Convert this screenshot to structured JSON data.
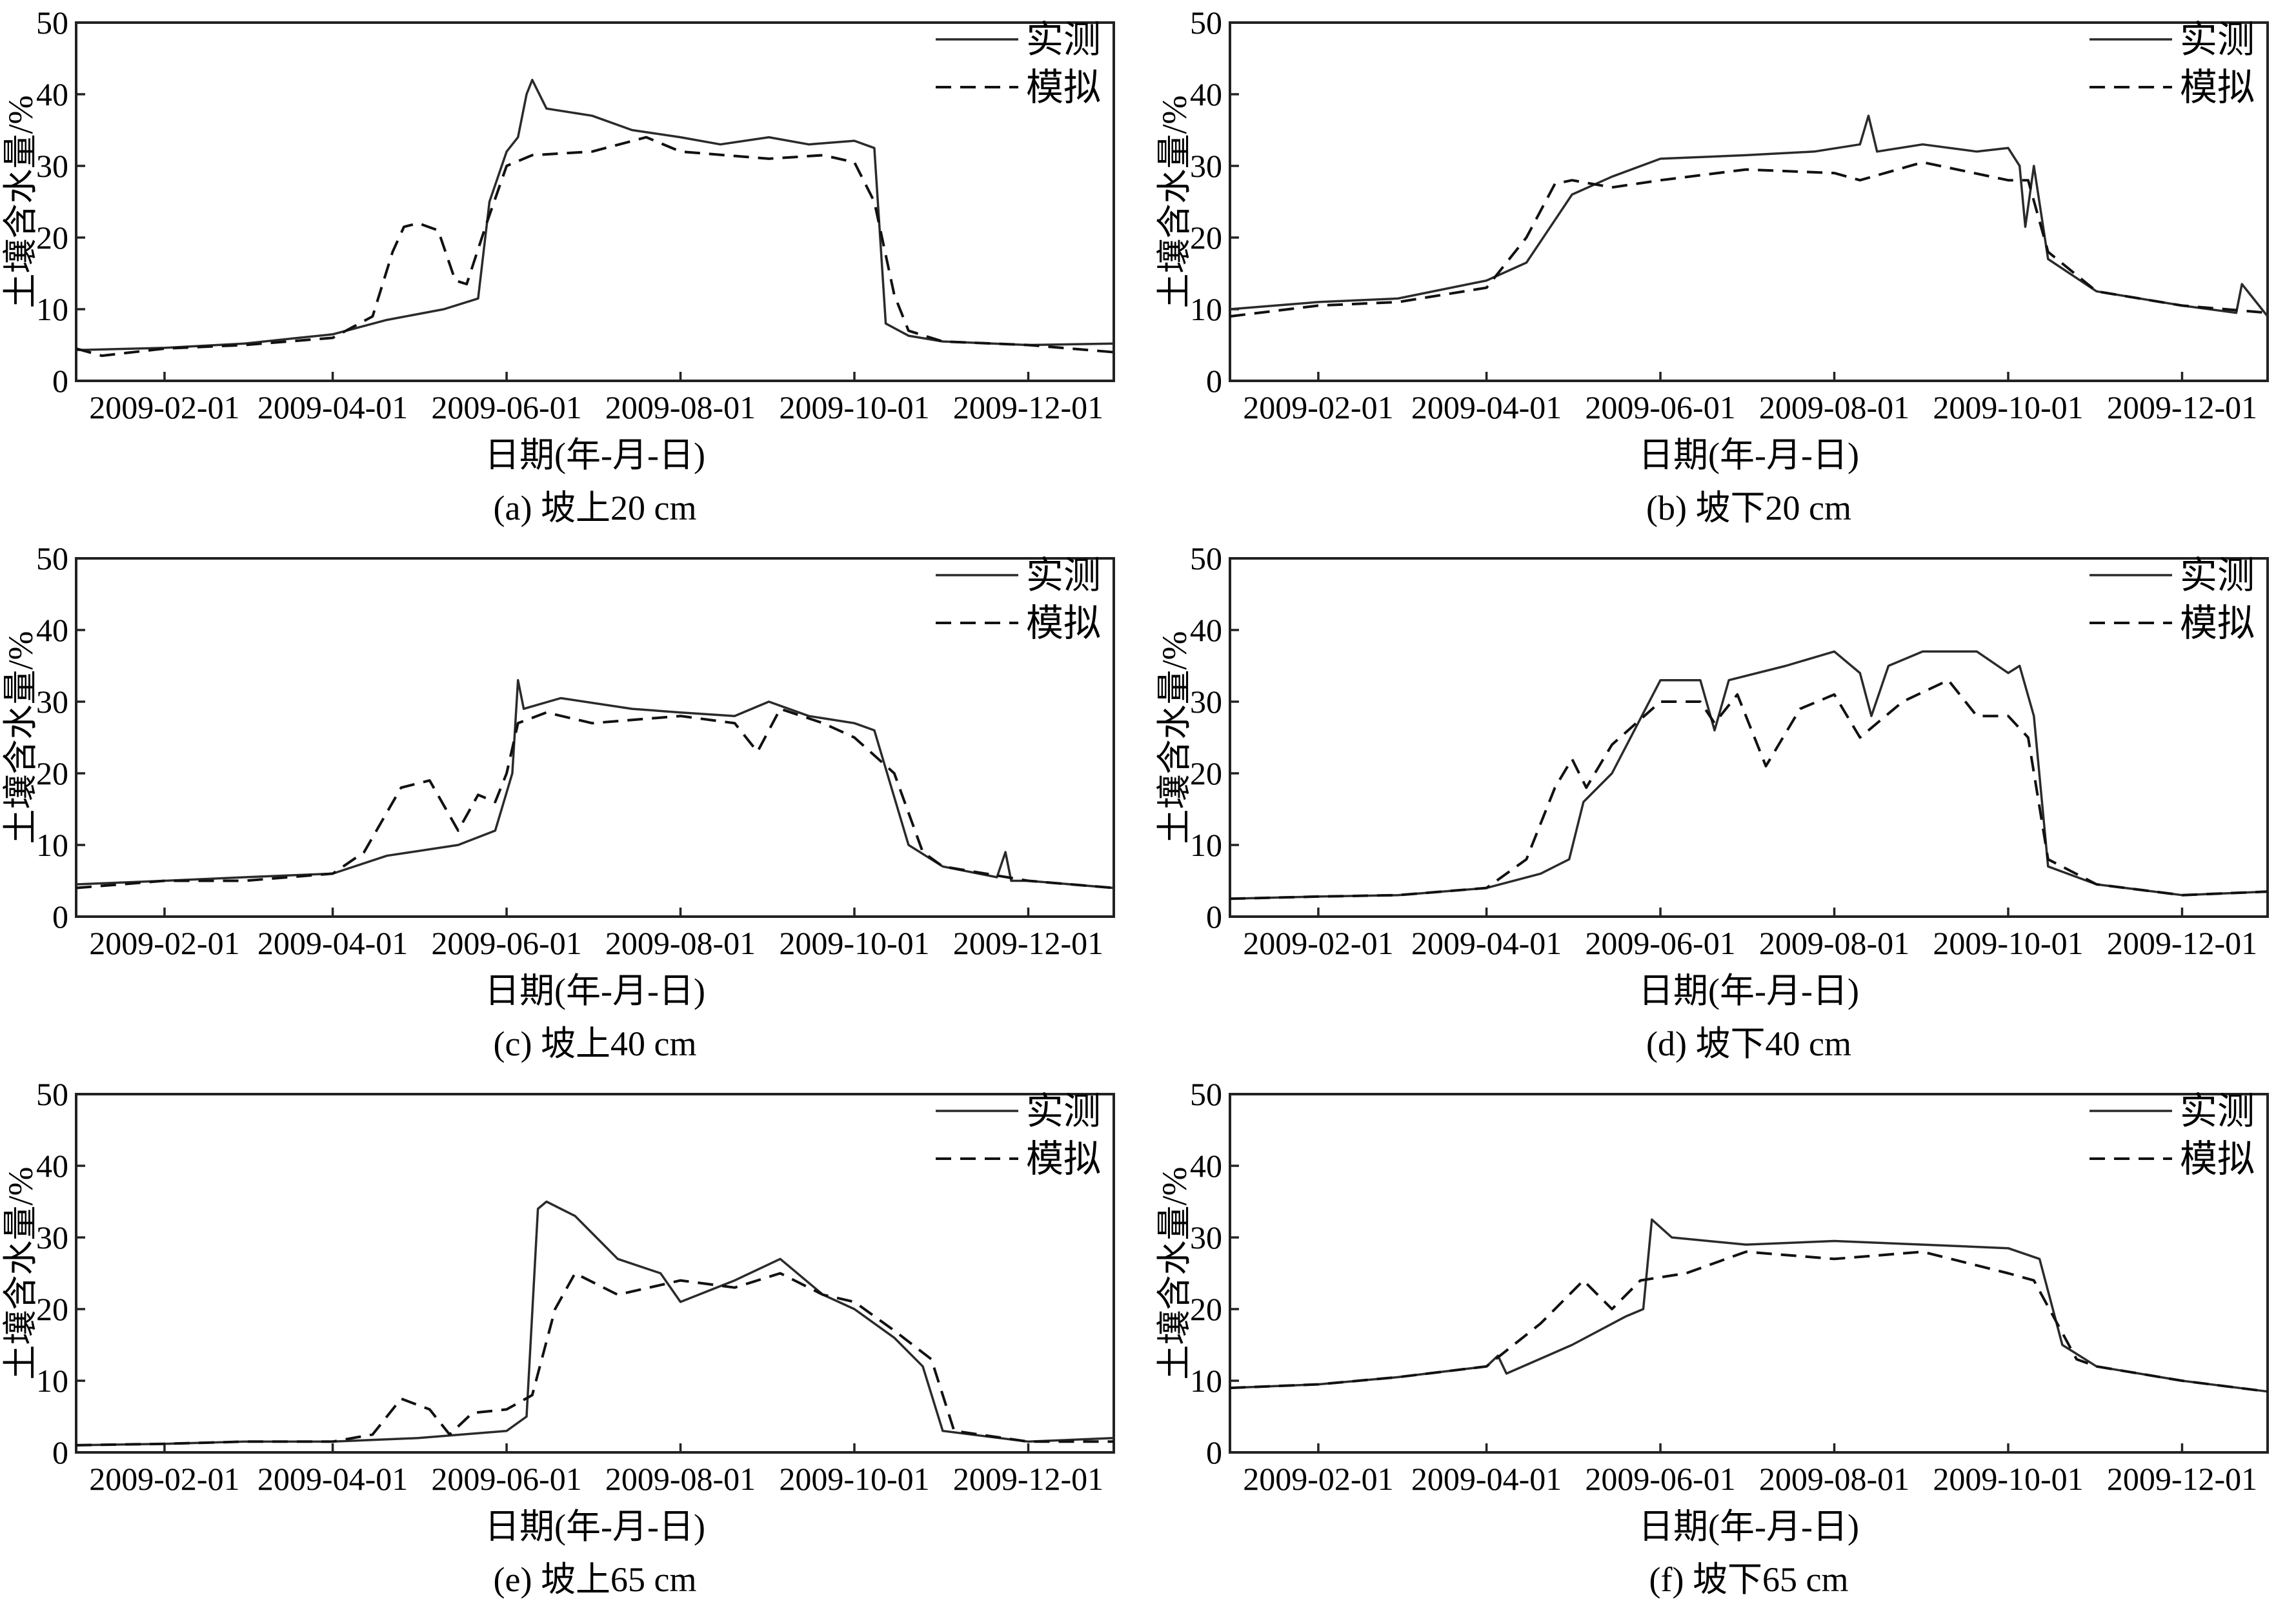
{
  "chart_data": [
    {
      "type": "line",
      "caption": "(a) 坡上20 cm",
      "xlabel": "日期(年-月-日)",
      "ylabel": "土壤含水量/%",
      "ylim": [
        0,
        50
      ],
      "yticks": [
        0,
        10,
        20,
        30,
        40,
        50
      ],
      "xlim": [
        "2009-01-01",
        "2009-12-31"
      ],
      "xticks": [
        "2009-02-01",
        "2009-04-01",
        "2009-06-01",
        "2009-08-01",
        "2009-10-01",
        "2009-12-01"
      ],
      "legend_position": "top-right",
      "series": [
        {
          "name": "实测",
          "style": "solid",
          "x": [
            "2009-01-01",
            "2009-02-01",
            "2009-03-01",
            "2009-03-20",
            "2009-04-01",
            "2009-04-20",
            "2009-05-10",
            "2009-05-22",
            "2009-05-26",
            "2009-06-01",
            "2009-06-05",
            "2009-06-08",
            "2009-06-10",
            "2009-06-15",
            "2009-07-01",
            "2009-07-15",
            "2009-08-01",
            "2009-08-15",
            "2009-09-01",
            "2009-09-15",
            "2009-10-01",
            "2009-10-08",
            "2009-10-12",
            "2009-10-20",
            "2009-11-01",
            "2009-12-01",
            "2009-12-31"
          ],
          "y": [
            4.3,
            4.6,
            5.2,
            6.0,
            6.5,
            8.5,
            10.0,
            11.5,
            25.0,
            32.0,
            34.0,
            40.0,
            42.0,
            38.0,
            37.0,
            35.0,
            34.0,
            33.0,
            34.0,
            33.0,
            33.5,
            32.5,
            8.0,
            6.3,
            5.5,
            5.0,
            5.2
          ]
        },
        {
          "name": "模拟",
          "style": "dashed",
          "x": [
            "2009-01-01",
            "2009-01-10",
            "2009-02-01",
            "2009-03-01",
            "2009-04-01",
            "2009-04-15",
            "2009-04-22",
            "2009-04-26",
            "2009-05-01",
            "2009-05-08",
            "2009-05-14",
            "2009-05-18",
            "2009-05-25",
            "2009-06-01",
            "2009-06-10",
            "2009-07-01",
            "2009-07-20",
            "2009-08-01",
            "2009-09-01",
            "2009-09-20",
            "2009-10-01",
            "2009-10-08",
            "2009-10-15",
            "2009-10-20",
            "2009-11-01",
            "2009-12-01",
            "2009-12-31"
          ],
          "y": [
            4.5,
            3.5,
            4.5,
            5.0,
            6.0,
            9.0,
            18.0,
            21.5,
            22.0,
            21.0,
            14.0,
            13.5,
            22.0,
            30.0,
            31.5,
            32.0,
            34.0,
            32.0,
            31.0,
            31.5,
            30.5,
            25.0,
            12.0,
            7.0,
            5.5,
            5.0,
            4.0
          ]
        }
      ]
    },
    {
      "type": "line",
      "caption": "(b) 坡下20 cm",
      "xlabel": "日期(年-月-日)",
      "ylabel": "土壤含水量/%",
      "ylim": [
        0,
        50
      ],
      "yticks": [
        0,
        10,
        20,
        30,
        40,
        50
      ],
      "xlim": [
        "2009-01-01",
        "2009-12-31"
      ],
      "xticks": [
        "2009-02-01",
        "2009-04-01",
        "2009-06-01",
        "2009-08-01",
        "2009-10-01",
        "2009-12-01"
      ],
      "legend_position": "top-right",
      "series": [
        {
          "name": "实测",
          "style": "solid",
          "x": [
            "2009-01-01",
            "2009-02-01",
            "2009-03-01",
            "2009-04-01",
            "2009-04-15",
            "2009-05-01",
            "2009-05-15",
            "2009-06-01",
            "2009-07-01",
            "2009-07-25",
            "2009-08-10",
            "2009-08-13",
            "2009-08-16",
            "2009-09-01",
            "2009-09-20",
            "2009-10-01",
            "2009-10-05",
            "2009-10-07",
            "2009-10-10",
            "2009-10-15",
            "2009-11-01",
            "2009-12-01",
            "2009-12-20",
            "2009-12-22",
            "2009-12-31"
          ],
          "y": [
            10.0,
            11.0,
            11.5,
            14.0,
            16.5,
            26.0,
            28.5,
            31.0,
            31.5,
            32.0,
            33.0,
            37.0,
            32.0,
            33.0,
            32.0,
            32.5,
            30.0,
            21.5,
            30.0,
            17.0,
            12.5,
            10.5,
            9.5,
            13.5,
            9.0
          ]
        },
        {
          "name": "模拟",
          "style": "dashed",
          "x": [
            "2009-01-01",
            "2009-02-01",
            "2009-03-01",
            "2009-04-01",
            "2009-04-15",
            "2009-04-25",
            "2009-05-01",
            "2009-05-15",
            "2009-06-01",
            "2009-07-01",
            "2009-08-01",
            "2009-08-10",
            "2009-09-01",
            "2009-10-01",
            "2009-10-08",
            "2009-10-15",
            "2009-11-01",
            "2009-12-01",
            "2009-12-31"
          ],
          "y": [
            9.0,
            10.5,
            11.0,
            13.0,
            20.0,
            27.5,
            28.0,
            27.0,
            28.0,
            29.5,
            29.0,
            28.0,
            30.5,
            28.0,
            28.0,
            18.0,
            12.5,
            10.5,
            9.5
          ]
        }
      ]
    },
    {
      "type": "line",
      "caption": "(c) 坡上40 cm",
      "xlabel": "日期(年-月-日)",
      "ylabel": "土壤含水量/%",
      "ylim": [
        0,
        50
      ],
      "yticks": [
        0,
        10,
        20,
        30,
        40,
        50
      ],
      "xlim": [
        "2009-01-01",
        "2009-12-31"
      ],
      "xticks": [
        "2009-02-01",
        "2009-04-01",
        "2009-06-01",
        "2009-08-01",
        "2009-10-01",
        "2009-12-01"
      ],
      "legend_position": "top-right",
      "series": [
        {
          "name": "实测",
          "style": "solid",
          "x": [
            "2009-01-01",
            "2009-02-01",
            "2009-03-01",
            "2009-04-01",
            "2009-04-20",
            "2009-05-15",
            "2009-05-28",
            "2009-06-03",
            "2009-06-05",
            "2009-06-07",
            "2009-06-20",
            "2009-07-15",
            "2009-08-01",
            "2009-08-20",
            "2009-09-01",
            "2009-09-15",
            "2009-10-01",
            "2009-10-08",
            "2009-10-20",
            "2009-11-01",
            "2009-11-20",
            "2009-11-23",
            "2009-11-25",
            "2009-12-01",
            "2009-12-31"
          ],
          "y": [
            4.5,
            5.0,
            5.5,
            6.0,
            8.5,
            10.0,
            12.0,
            20.0,
            33.0,
            29.0,
            30.5,
            29.0,
            28.5,
            28.0,
            30.0,
            28.0,
            27.0,
            26.0,
            10.0,
            7.0,
            5.5,
            9.0,
            5.0,
            5.0,
            4.0
          ]
        },
        {
          "name": "模拟",
          "style": "dashed",
          "x": [
            "2009-01-01",
            "2009-02-01",
            "2009-03-01",
            "2009-04-01",
            "2009-04-12",
            "2009-04-25",
            "2009-05-05",
            "2009-05-15",
            "2009-05-22",
            "2009-05-28",
            "2009-06-01",
            "2009-06-05",
            "2009-06-15",
            "2009-07-01",
            "2009-08-01",
            "2009-08-20",
            "2009-08-28",
            "2009-09-05",
            "2009-09-20",
            "2009-10-01",
            "2009-10-15",
            "2009-10-25",
            "2009-11-01",
            "2009-12-01",
            "2009-12-31"
          ],
          "y": [
            4.0,
            5.0,
            5.0,
            6.0,
            9.0,
            18.0,
            19.0,
            12.0,
            17.0,
            16.0,
            20.0,
            27.0,
            28.5,
            27.0,
            28.0,
            27.0,
            23.0,
            29.0,
            27.0,
            25.0,
            20.0,
            9.0,
            7.0,
            5.0,
            4.0
          ]
        }
      ]
    },
    {
      "type": "line",
      "caption": "(d) 坡下40 cm",
      "xlabel": "日期(年-月-日)",
      "ylabel": "土壤含水量/%",
      "ylim": [
        0,
        50
      ],
      "yticks": [
        0,
        10,
        20,
        30,
        40,
        50
      ],
      "xlim": [
        "2009-01-01",
        "2009-12-31"
      ],
      "xticks": [
        "2009-02-01",
        "2009-04-01",
        "2009-06-01",
        "2009-08-01",
        "2009-10-01",
        "2009-12-01"
      ],
      "legend_position": "top-right",
      "series": [
        {
          "name": "实测",
          "style": "solid",
          "x": [
            "2009-01-01",
            "2009-02-01",
            "2009-03-01",
            "2009-04-01",
            "2009-04-20",
            "2009-04-30",
            "2009-05-05",
            "2009-05-15",
            "2009-06-01",
            "2009-06-15",
            "2009-06-20",
            "2009-06-25",
            "2009-07-15",
            "2009-08-01",
            "2009-08-10",
            "2009-08-14",
            "2009-08-20",
            "2009-09-01",
            "2009-09-20",
            "2009-10-01",
            "2009-10-05",
            "2009-10-10",
            "2009-10-15",
            "2009-11-01",
            "2009-12-01",
            "2009-12-31"
          ],
          "y": [
            2.5,
            2.8,
            3.0,
            4.0,
            6.0,
            8.0,
            16.0,
            20.0,
            33.0,
            33.0,
            26.0,
            33.0,
            35.0,
            37.0,
            34.0,
            28.0,
            35.0,
            37.0,
            37.0,
            34.0,
            35.0,
            28.0,
            7.0,
            4.5,
            3.0,
            3.5
          ]
        },
        {
          "name": "模拟",
          "style": "dashed",
          "x": [
            "2009-01-01",
            "2009-02-01",
            "2009-03-01",
            "2009-04-01",
            "2009-04-15",
            "2009-04-25",
            "2009-05-01",
            "2009-05-06",
            "2009-05-15",
            "2009-06-01",
            "2009-06-15",
            "2009-06-20",
            "2009-06-28",
            "2009-07-08",
            "2009-07-20",
            "2009-08-01",
            "2009-08-10",
            "2009-08-25",
            "2009-09-10",
            "2009-09-20",
            "2009-10-01",
            "2009-10-08",
            "2009-10-15",
            "2009-11-01",
            "2009-12-01",
            "2009-12-31"
          ],
          "y": [
            2.5,
            2.8,
            3.0,
            4.0,
            8.0,
            18.0,
            22.0,
            18.0,
            24.0,
            30.0,
            30.0,
            27.0,
            31.0,
            21.0,
            29.0,
            31.0,
            25.0,
            30.0,
            33.0,
            28.0,
            28.0,
            25.0,
            8.0,
            4.5,
            3.0,
            3.5
          ]
        }
      ]
    },
    {
      "type": "line",
      "caption": "(e) 坡上65 cm",
      "xlabel": "日期(年-月-日)",
      "ylabel": "土壤含水量/%",
      "ylim": [
        0,
        50
      ],
      "yticks": [
        0,
        10,
        20,
        30,
        40,
        50
      ],
      "xlim": [
        "2009-01-01",
        "2009-12-31"
      ],
      "xticks": [
        "2009-02-01",
        "2009-04-01",
        "2009-06-01",
        "2009-08-01",
        "2009-10-01",
        "2009-12-01"
      ],
      "legend_position": "top-right",
      "series": [
        {
          "name": "实测",
          "style": "solid",
          "x": [
            "2009-01-01",
            "2009-02-01",
            "2009-03-01",
            "2009-04-01",
            "2009-05-01",
            "2009-06-01",
            "2009-06-08",
            "2009-06-12",
            "2009-06-15",
            "2009-06-25",
            "2009-07-10",
            "2009-07-25",
            "2009-08-01",
            "2009-08-20",
            "2009-09-05",
            "2009-09-20",
            "2009-10-01",
            "2009-10-15",
            "2009-10-25",
            "2009-11-01",
            "2009-12-01",
            "2009-12-31"
          ],
          "y": [
            1.0,
            1.2,
            1.5,
            1.5,
            2.0,
            3.0,
            5.0,
            34.0,
            35.0,
            33.0,
            27.0,
            25.0,
            21.0,
            24.0,
            27.0,
            22.0,
            20.0,
            16.0,
            12.0,
            3.0,
            1.5,
            2.0
          ]
        },
        {
          "name": "模拟",
          "style": "dashed",
          "x": [
            "2009-01-01",
            "2009-02-01",
            "2009-03-01",
            "2009-04-01",
            "2009-04-15",
            "2009-04-25",
            "2009-05-05",
            "2009-05-12",
            "2009-05-20",
            "2009-06-01",
            "2009-06-10",
            "2009-06-18",
            "2009-06-25",
            "2009-07-10",
            "2009-08-01",
            "2009-08-20",
            "2009-09-05",
            "2009-09-20",
            "2009-10-01",
            "2009-10-15",
            "2009-10-28",
            "2009-11-05",
            "2009-12-01",
            "2009-12-31"
          ],
          "y": [
            1.0,
            1.2,
            1.5,
            1.5,
            2.5,
            7.5,
            6.0,
            2.5,
            5.5,
            6.0,
            8.0,
            20.0,
            25.0,
            22.0,
            24.0,
            23.0,
            25.0,
            22.0,
            21.0,
            17.0,
            13.0,
            3.0,
            1.5,
            1.5
          ]
        }
      ]
    },
    {
      "type": "line",
      "caption": "(f) 坡下65 cm",
      "xlabel": "日期(年-月-日)",
      "ylabel": "土壤含水量/%",
      "ylim": [
        0,
        50
      ],
      "yticks": [
        0,
        10,
        20,
        30,
        40,
        50
      ],
      "xlim": [
        "2009-01-01",
        "2009-12-31"
      ],
      "xticks": [
        "2009-02-01",
        "2009-04-01",
        "2009-06-01",
        "2009-08-01",
        "2009-10-01",
        "2009-12-01"
      ],
      "legend_position": "top-right",
      "series": [
        {
          "name": "实测",
          "style": "solid",
          "x": [
            "2009-01-01",
            "2009-02-01",
            "2009-03-01",
            "2009-04-01",
            "2009-04-05",
            "2009-04-08",
            "2009-05-01",
            "2009-05-20",
            "2009-05-26",
            "2009-05-29",
            "2009-06-05",
            "2009-07-01",
            "2009-08-01",
            "2009-09-01",
            "2009-10-01",
            "2009-10-12",
            "2009-10-20",
            "2009-11-01",
            "2009-12-01",
            "2009-12-31"
          ],
          "y": [
            9.0,
            9.5,
            10.5,
            12.0,
            13.5,
            11.0,
            15.0,
            19.0,
            20.0,
            32.5,
            30.0,
            29.0,
            29.5,
            29.0,
            28.5,
            27.0,
            15.0,
            12.0,
            10.0,
            8.5
          ]
        },
        {
          "name": "模拟",
          "style": "dashed",
          "x": [
            "2009-01-01",
            "2009-02-01",
            "2009-03-01",
            "2009-04-01",
            "2009-04-20",
            "2009-05-05",
            "2009-05-15",
            "2009-05-25",
            "2009-06-10",
            "2009-07-01",
            "2009-08-01",
            "2009-09-01",
            "2009-10-01",
            "2009-10-10",
            "2009-10-25",
            "2009-11-01",
            "2009-12-01",
            "2009-12-31"
          ],
          "y": [
            9.0,
            9.5,
            10.5,
            12.0,
            18.0,
            24.0,
            20.0,
            24.0,
            25.0,
            28.0,
            27.0,
            28.0,
            25.0,
            24.0,
            13.0,
            12.0,
            10.0,
            8.5
          ]
        }
      ]
    }
  ]
}
